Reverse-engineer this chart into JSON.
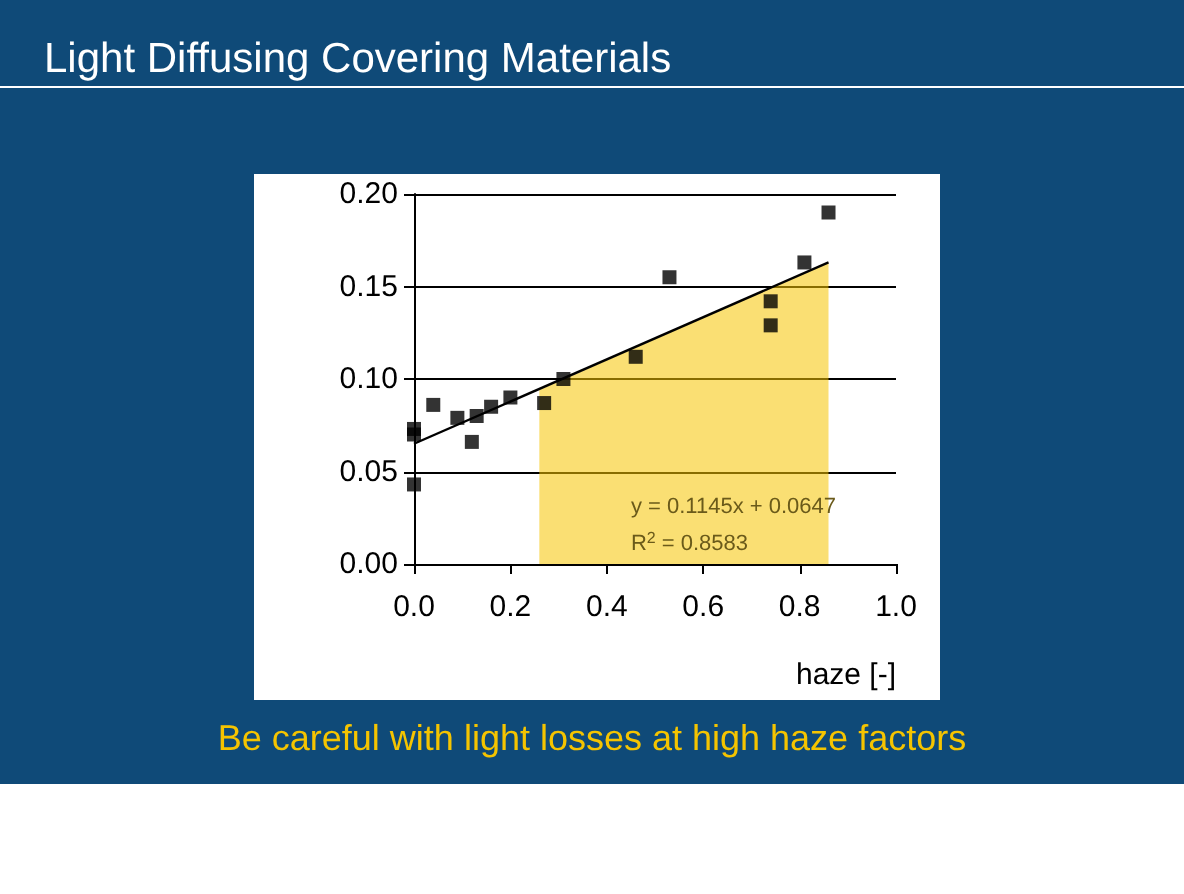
{
  "chart_data": {
    "type": "scatter",
    "title": "Light Diffusing Covering Materials",
    "xlabel": "haze [-]",
    "annotations": [
      "y = 0.1145x + 0.0647",
      "R$^{2}$ = 0.8583",
      "Be careful with light losses at high haze factors"
    ],
    "series": [
      {
        "type": "area",
        "color": "#f5c400",
        "x": [
          0.26,
          0.86
        ],
        "values": [
          0.094,
          0.163
        ]
      },
      {
        "type": "line",
        "color": "#000000",
        "marker": "none",
        "x": [
          0,
          0.86
        ],
        "values": [
          0.065,
          0.163
        ]
      },
      {
        "color": "#000000",
        "marker": "square",
        "x": [
          0,
          0,
          0,
          0.04,
          0.09,
          0.13,
          0.12,
          0.16,
          0.2,
          0.27,
          0.31,
          0.46,
          0.53,
          0.74,
          0.74,
          0.81,
          0.86
        ],
        "values": [
          0.073,
          0.07,
          0.043,
          0.086,
          0.079,
          0.08,
          0.066,
          0.085,
          0.09,
          0.087,
          0.1,
          0.112,
          0.155,
          0.142,
          0.129,
          0.163,
          0.19
        ]
      }
    ],
    "xlim": [
      0,
      1
    ],
    "xticks": [
      {
        "value": 0,
        "label": "0.0"
      },
      0.2,
      0.4,
      0.6,
      0.8,
      {
        "value": 1,
        "label": "1.0"
      }
    ],
    "ylim": [
      0,
      0.2
    ],
    "yticks": [
      {
        "value": 0,
        "label": "0.00"
      },
      0.05,
      {
        "value": 0.1,
        "label": "0.10"
      },
      0.15,
      {
        "value": 0.2,
        "label": "0.20"
      }
    ],
    "grid": "y"
  }
}
